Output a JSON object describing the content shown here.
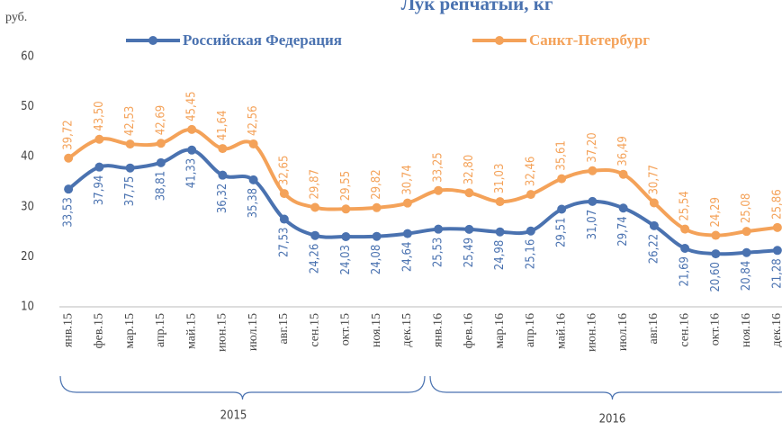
{
  "chart_data": {
    "type": "line",
    "title": "Лук репчатый, кг",
    "y_unit": "руб.",
    "categories": [
      "янв.15",
      "фев.15",
      "мар.15",
      "апр.15",
      "май.15",
      "июн.15",
      "июл.15",
      "авг.15",
      "сен.15",
      "окт.15",
      "ноя.15",
      "дек.15",
      "янв.16",
      "фев.16",
      "мар.16",
      "апр.16",
      "май.16",
      "июн.16",
      "июл.16",
      "авг.16",
      "сен.16",
      "окт.16",
      "ноя.16",
      "дек.16"
    ],
    "group_labels": [
      "2015",
      "2016"
    ],
    "series": [
      {
        "name": "Российская Федерация",
        "color": "#4a72b0",
        "values": [
          33.53,
          37.94,
          37.75,
          38.81,
          41.33,
          36.32,
          35.38,
          27.53,
          24.26,
          24.03,
          24.08,
          24.64,
          25.53,
          25.49,
          24.98,
          25.16,
          29.51,
          31.07,
          29.74,
          26.22,
          21.69,
          20.6,
          20.84,
          21.28
        ],
        "value_labels": [
          "33,53",
          "37,94",
          "37,75",
          "38,81",
          "41,33",
          "36,32",
          "35,38",
          "27,53",
          "24,26",
          "24,03",
          "24,08",
          "24,64",
          "25,53",
          "25,49",
          "24,98",
          "25,16",
          "29,51",
          "31,07",
          "29,74",
          "26,22",
          "21,69",
          "20,60",
          "20,84",
          "21,28"
        ]
      },
      {
        "name": "Санкт-Петербург",
        "color": "#f4a259",
        "values": [
          39.72,
          43.5,
          42.53,
          42.69,
          45.45,
          41.64,
          42.56,
          32.65,
          29.87,
          29.55,
          29.82,
          30.74,
          33.25,
          32.8,
          31.03,
          32.46,
          35.61,
          37.2,
          36.49,
          30.77,
          25.54,
          24.29,
          25.08,
          25.86
        ],
        "value_labels": [
          "39,72",
          "43,50",
          "42,53",
          "42,69",
          "45,45",
          "41,64",
          "42,56",
          "32,65",
          "29,87",
          "29,55",
          "29,82",
          "30,74",
          "33,25",
          "32,80",
          "31,03",
          "32,46",
          "35,61",
          "37,20",
          "36,49",
          "30,77",
          "25,54",
          "24,29",
          "25,08",
          "25,86"
        ]
      }
    ],
    "ylim": [
      10,
      60
    ],
    "yticks": [
      10,
      20,
      30,
      40,
      50,
      60
    ],
    "grid": false
  }
}
